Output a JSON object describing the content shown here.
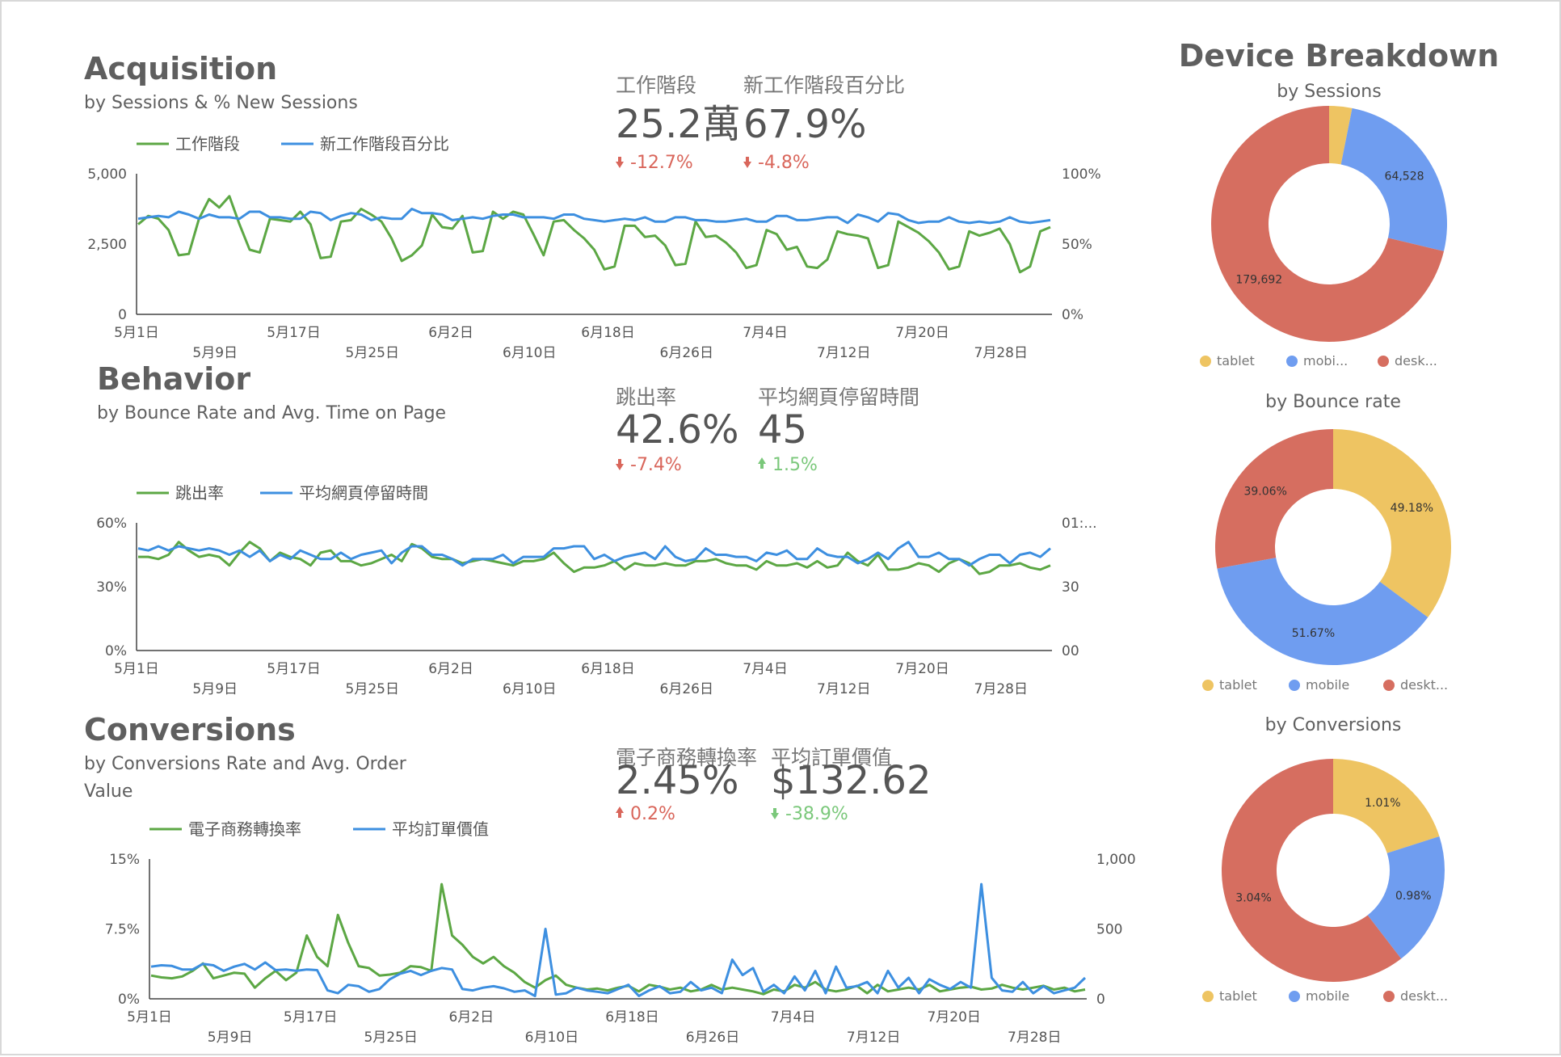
{
  "sections": {
    "acquisition": {
      "title": "Acquisition",
      "subtitle": [
        "by Sessions & % New Sessions"
      ]
    },
    "behavior": {
      "title": "Behavior",
      "subtitle": [
        "by Bounce Rate and Avg. Time on Page"
      ]
    },
    "conversions": {
      "title": "Conversions",
      "subtitle": [
        "by Conversions Rate and Avg. Order",
        "Value"
      ]
    },
    "device": {
      "title": "Device Breakdown"
    }
  },
  "kpis": {
    "acquisition": [
      {
        "label": "工作階段",
        "value": "25.2萬",
        "delta": "-12.7%",
        "direction": "down",
        "color": "#d9665b"
      },
      {
        "label": "新工作階段百分比",
        "value": "67.9%",
        "delta": "-4.8%",
        "direction": "down",
        "color": "#d9665b"
      }
    ],
    "behavior": [
      {
        "label": "跳出率",
        "value": "42.6%",
        "delta": "-7.4%",
        "direction": "down",
        "color": "#d9665b"
      },
      {
        "label": "平均網頁停留時間",
        "value": "45",
        "delta": "1.5%",
        "direction": "up",
        "color": "#7bc87b"
      }
    ],
    "conversions": [
      {
        "label": "電子商務轉換率",
        "value": "2.45%",
        "delta": "0.2%",
        "direction": "up",
        "color": "#d9665b"
      },
      {
        "label": "平均訂單價值",
        "value": "$132.62",
        "delta": "-38.9%",
        "direction": "down",
        "color": "#7bc87b"
      }
    ]
  },
  "colors": {
    "green": "#5ca744",
    "blue": "#3d8fe0",
    "tablet": "#eec462",
    "mobile": "#6f9df0",
    "desktop": "#d66e60"
  },
  "chart_data": [
    {
      "id": "acquisition",
      "type": "line",
      "x_tick_labels": [
        "5月1日",
        "5月9日",
        "5月17日",
        "5月25日",
        "6月2日",
        "6月10日",
        "6月18日",
        "6月26日",
        "7月4日",
        "7月12日",
        "7月20日",
        "7月28日"
      ],
      "y_left": {
        "ticks": [
          "5,000",
          "2,500",
          "0"
        ],
        "ylim": [
          0,
          5000
        ]
      },
      "y_right": {
        "ticks": [
          "100%",
          "50%",
          "0%"
        ],
        "ylim": [
          0,
          100
        ]
      },
      "series": [
        {
          "name": "工作階段",
          "axis": "left",
          "color": "#5ca744",
          "values": [
            3200,
            3500,
            3400,
            3000,
            2100,
            2150,
            3400,
            4100,
            3800,
            4200,
            3200,
            2300,
            2200,
            3400,
            3350,
            3300,
            3650,
            3200,
            2000,
            2050,
            3300,
            3350,
            3750,
            3550,
            3300,
            2700,
            1900,
            2100,
            2450,
            3550,
            3100,
            3050,
            3500,
            2200,
            2250,
            3650,
            3400,
            3650,
            3550,
            2850,
            2100,
            3300,
            3350,
            3000,
            2700,
            2300,
            1600,
            1700,
            3150,
            3150,
            2750,
            2800,
            2450,
            1750,
            1800,
            3300,
            2750,
            2800,
            2550,
            2200,
            1650,
            1750,
            3000,
            2850,
            2300,
            2400,
            1700,
            1650,
            1950,
            2950,
            2850,
            2800,
            2700,
            1650,
            1750,
            3300,
            3100,
            2900,
            2600,
            2200,
            1600,
            1700,
            2950,
            2800,
            2900,
            3050,
            2500,
            1500,
            1700,
            2950,
            3100
          ]
        },
        {
          "name": "新工作階段百分比",
          "axis": "right",
          "color": "#3d8fe0",
          "values": [
            68,
            69,
            70,
            69,
            73,
            71,
            68,
            71,
            69,
            69,
            68,
            73,
            73,
            69,
            69,
            68,
            68,
            73,
            72,
            67,
            70,
            72,
            71,
            67,
            69,
            68,
            68,
            75,
            72,
            72,
            71,
            67,
            68,
            69,
            68,
            70,
            71,
            71,
            69,
            69,
            69,
            68,
            71,
            71,
            68,
            67,
            66,
            67,
            68,
            67,
            69,
            66,
            66,
            69,
            69,
            67,
            67,
            66,
            66,
            67,
            68,
            66,
            66,
            70,
            70,
            67,
            67,
            68,
            69,
            69,
            65,
            71,
            69,
            66,
            72,
            71,
            67,
            65,
            66,
            66,
            69,
            66,
            65,
            66,
            65,
            66,
            69,
            66,
            65,
            66,
            67
          ]
        }
      ]
    },
    {
      "id": "behavior",
      "type": "line",
      "x_tick_labels": [
        "5月1日",
        "5月9日",
        "5月17日",
        "5月25日",
        "6月2日",
        "6月10日",
        "6月18日",
        "6月26日",
        "7月4日",
        "7月12日",
        "7月20日",
        "7月28日"
      ],
      "y_left": {
        "ticks": [
          "60%",
          "30%",
          "0%"
        ],
        "ylim": [
          0,
          60
        ]
      },
      "y_right": {
        "ticks": [
          "01:...",
          "30",
          "00"
        ],
        "ylim": [
          0,
          60
        ]
      },
      "series": [
        {
          "name": "跳出率",
          "axis": "left",
          "color": "#5ca744",
          "values": [
            44,
            44,
            43,
            45,
            51,
            47,
            44,
            45,
            44,
            40,
            46,
            51,
            48,
            42,
            46,
            44,
            43,
            40,
            46,
            47,
            42,
            42,
            40,
            41,
            43,
            45,
            42,
            50,
            48,
            44,
            43,
            43,
            41,
            42,
            43,
            42,
            41,
            40,
            42,
            42,
            43,
            46,
            41,
            37,
            39,
            39,
            40,
            42,
            38,
            41,
            40,
            40,
            41,
            40,
            40,
            42,
            42,
            43,
            41,
            40,
            40,
            38,
            42,
            40,
            40,
            41,
            39,
            42,
            39,
            40,
            46,
            42,
            40,
            45,
            38,
            38,
            39,
            41,
            40,
            37,
            41,
            43,
            41,
            36,
            37,
            40,
            40,
            41,
            39,
            38,
            40
          ]
        },
        {
          "name": "平均網頁停留時間",
          "axis": "right",
          "color": "#3d8fe0",
          "values": [
            48,
            47,
            49,
            47,
            49,
            48,
            47,
            48,
            47,
            45,
            47,
            44,
            47,
            42,
            45,
            43,
            47,
            45,
            43,
            43,
            46,
            43,
            45,
            46,
            47,
            41,
            46,
            49,
            49,
            45,
            45,
            43,
            40,
            43,
            43,
            43,
            45,
            41,
            44,
            44,
            44,
            48,
            48,
            49,
            49,
            43,
            45,
            42,
            44,
            45,
            46,
            43,
            49,
            44,
            42,
            43,
            48,
            45,
            45,
            44,
            44,
            42,
            46,
            45,
            47,
            43,
            43,
            48,
            45,
            44,
            44,
            41,
            43,
            46,
            43,
            48,
            51,
            44,
            44,
            46,
            43,
            43,
            40,
            43,
            45,
            45,
            41,
            45,
            46,
            44,
            48
          ]
        }
      ]
    },
    {
      "id": "conversions",
      "type": "line",
      "x_tick_labels": [
        "5月1日",
        "5月9日",
        "5月17日",
        "5月25日",
        "6月2日",
        "6月10日",
        "6月18日",
        "6月26日",
        "7月4日",
        "7月12日",
        "7月20日",
        "7月28日"
      ],
      "y_left": {
        "ticks": [
          "15%",
          "7.5%",
          "0%"
        ],
        "ylim": [
          0,
          15
        ]
      },
      "y_right": {
        "ticks": [
          "1,000",
          "500",
          "0"
        ],
        "ylim": [
          0,
          1000
        ]
      },
      "series": [
        {
          "name": "電子商務轉換率",
          "axis": "left",
          "color": "#5ca744",
          "values": [
            2.5,
            2.3,
            2.2,
            2.4,
            3.0,
            3.8,
            2.2,
            2.5,
            2.8,
            2.7,
            1.2,
            2.2,
            3.0,
            2.0,
            2.8,
            6.8,
            4.5,
            3.5,
            9.0,
            6.0,
            3.5,
            3.3,
            2.5,
            2.6,
            2.8,
            3.5,
            3.4,
            3.0,
            12.3,
            6.8,
            5.8,
            4.5,
            3.8,
            4.5,
            3.5,
            2.8,
            1.8,
            1.2,
            2.0,
            2.5,
            1.5,
            1.2,
            1.0,
            1.1,
            0.9,
            1.2,
            1.4,
            0.8,
            1.5,
            1.3,
            1.0,
            1.2,
            0.8,
            1.0,
            1.5,
            1.0,
            1.2,
            1.0,
            0.8,
            0.5,
            1.0,
            0.8,
            1.5,
            1.2,
            1.8,
            1.0,
            0.8,
            1.0,
            1.4,
            0.6,
            1.5,
            0.8,
            1.0,
            1.2,
            1.0,
            1.5,
            0.8,
            1.0,
            1.2,
            1.3,
            1.0,
            1.1,
            1.5,
            1.2,
            1.0,
            1.2,
            1.4,
            1.0,
            1.2,
            0.8,
            1.0
          ]
        },
        {
          "name": "平均訂單價值",
          "axis": "right",
          "color": "#3d8fe0",
          "values": [
            230,
            240,
            235,
            210,
            210,
            250,
            240,
            200,
            230,
            250,
            210,
            260,
            205,
            210,
            200,
            210,
            205,
            60,
            40,
            100,
            90,
            50,
            70,
            140,
            180,
            200,
            170,
            200,
            220,
            210,
            70,
            60,
            80,
            90,
            75,
            50,
            60,
            20,
            500,
            30,
            40,
            80,
            60,
            50,
            40,
            70,
            100,
            20,
            60,
            90,
            40,
            50,
            120,
            60,
            80,
            40,
            280,
            170,
            220,
            50,
            100,
            40,
            160,
            60,
            200,
            40,
            230,
            80,
            90,
            120,
            40,
            200,
            80,
            150,
            40,
            140,
            100,
            70,
            120,
            80,
            820,
            150,
            60,
            50,
            120,
            40,
            90,
            40,
            60,
            80,
            150
          ]
        }
      ]
    },
    {
      "id": "device-sessions",
      "type": "pie",
      "subtitle": "by Sessions",
      "categories": [
        "tablet",
        "mobi...",
        "desk..."
      ],
      "values": [
        7900,
        64528,
        179692
      ],
      "slice_labels": [
        "",
        "64,528",
        "179,692"
      ]
    },
    {
      "id": "device-bounce",
      "type": "pie",
      "subtitle": "by Bounce rate",
      "categories": [
        "tablet",
        "mobile",
        "deskt..."
      ],
      "values": [
        49.18,
        51.67,
        39.06
      ],
      "slice_labels": [
        "49.18%",
        "51.67%",
        "39.06%"
      ]
    },
    {
      "id": "device-conversions",
      "type": "pie",
      "subtitle": "by Conversions",
      "categories": [
        "tablet",
        "mobile",
        "deskt..."
      ],
      "values": [
        1.01,
        0.98,
        3.04
      ],
      "slice_labels": [
        "1.01%",
        "0.98%",
        "3.04%"
      ]
    }
  ]
}
